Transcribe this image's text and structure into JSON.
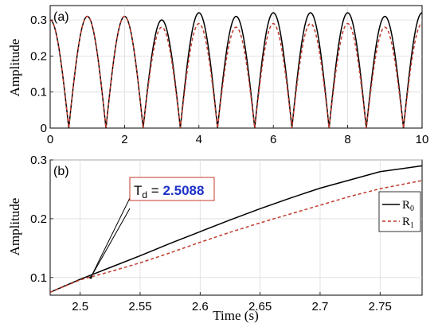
{
  "chart_data": [
    {
      "type": "line",
      "panel_label": "(a)",
      "xlabel": "",
      "ylabel": "Amplitude",
      "xlim": [
        0,
        10
      ],
      "ylim": [
        0,
        0.34
      ],
      "x_ticks": [
        "0",
        "2",
        "4",
        "6",
        "8",
        "10"
      ],
      "y_ticks": [
        "0",
        "0.1",
        "0.2",
        "0.3"
      ],
      "grid": true,
      "period": 1,
      "x_start": 0,
      "x_end": 10,
      "series": [
        {
          "name": "R0",
          "color": "#000000",
          "dash": "solid",
          "x": [
            0,
            1,
            2,
            3,
            4,
            5,
            6,
            7,
            8,
            9,
            10
          ],
          "values": [
            0.3,
            0.31,
            0.31,
            0.3,
            0.32,
            0.31,
            0.32,
            0.32,
            0.32,
            0.31,
            0.32
          ]
        },
        {
          "name": "R1",
          "color": "#c0392b",
          "dash": "dashed",
          "x": [
            0,
            1,
            2,
            3,
            4,
            5,
            6,
            7,
            8,
            9,
            10
          ],
          "values": [
            0.3,
            0.31,
            0.31,
            0.28,
            0.29,
            0.28,
            0.29,
            0.29,
            0.29,
            0.28,
            0.29
          ]
        }
      ]
    },
    {
      "type": "line",
      "panel_label": "(b)",
      "xlabel": "Time (s)",
      "ylabel": "Amplitude",
      "xlim": [
        2.475,
        2.785
      ],
      "ylim": [
        0.07,
        0.3
      ],
      "x_ticks": [
        "2.5",
        "2.55",
        "2.6",
        "2.65",
        "2.7",
        "2.75"
      ],
      "y_ticks": [
        "0.1",
        "0.2",
        "0.3"
      ],
      "grid": true,
      "legend": {
        "position": "right",
        "entries": [
          {
            "label": "R",
            "sub": "0",
            "color": "#000000",
            "dash": "solid"
          },
          {
            "label": "R",
            "sub": "1",
            "color": "#c0392b",
            "dash": "dashed"
          }
        ]
      },
      "annotation": {
        "label": "T",
        "sub": "d",
        "eq": " = ",
        "value": "2.5088",
        "x": 2.5088,
        "y": 0.1
      },
      "series": [
        {
          "name": "R0",
          "color": "#000000",
          "dash": "solid",
          "x": [
            2.475,
            2.5,
            2.525,
            2.55,
            2.575,
            2.6,
            2.625,
            2.65,
            2.675,
            2.7,
            2.725,
            2.75,
            2.785
          ],
          "values": [
            0.075,
            0.097,
            0.117,
            0.137,
            0.158,
            0.178,
            0.198,
            0.217,
            0.235,
            0.252,
            0.266,
            0.28,
            0.29
          ]
        },
        {
          "name": "R1",
          "color": "#c0392b",
          "dash": "dashed",
          "x": [
            2.475,
            2.5,
            2.525,
            2.55,
            2.575,
            2.6,
            2.625,
            2.65,
            2.675,
            2.7,
            2.725,
            2.75,
            2.785
          ],
          "values": [
            0.075,
            0.096,
            0.11,
            0.125,
            0.142,
            0.16,
            0.177,
            0.193,
            0.208,
            0.223,
            0.238,
            0.251,
            0.265
          ]
        }
      ]
    }
  ]
}
